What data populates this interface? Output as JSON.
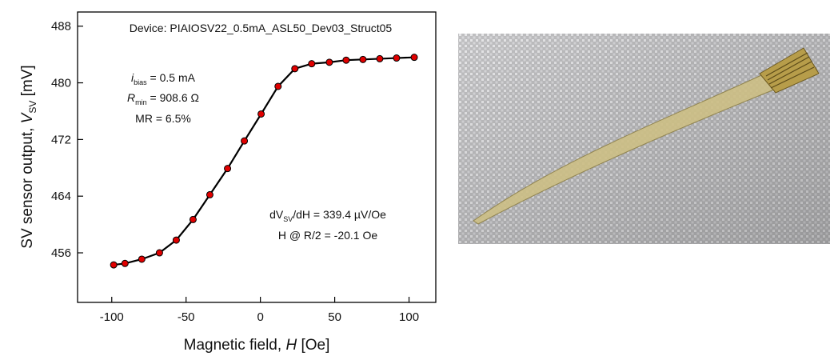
{
  "chart_data": {
    "type": "line",
    "x_label": [
      "Magnetic field, ",
      "H",
      " [Oe]"
    ],
    "y_label": [
      "SV sensor output,  ",
      "V",
      "SV",
      " [mV]"
    ],
    "annotations": {
      "device": "Device: PIAIOSV22_0.5mA_ASL50_Dev03_Struct05",
      "bias": [
        "i",
        "bias",
        " = 0.5 mA"
      ],
      "rmin": [
        "R",
        "min",
        " = 908.6 Ω"
      ],
      "mr": "MR = 6.5%",
      "slope": [
        "dV",
        "SV",
        "/dH = 339.4 µV/Oe"
      ],
      "half": "H @ R/2 = -20.1 Oe"
    },
    "x": [
      -98.7,
      -91.1,
      -79.8,
      -67.9,
      -56.6,
      -45.3,
      -34.0,
      -22.1,
      -10.8,
      0.5,
      11.9,
      23.2,
      34.5,
      46.4,
      57.7,
      69.0,
      80.3,
      91.6,
      103.5
    ],
    "series": [
      {
        "color": "#e00000",
        "values": [
          454.3,
          454.5,
          455.1,
          456.0,
          457.8,
          460.7,
          464.2,
          467.9,
          471.8,
          475.6,
          479.5,
          482.0,
          482.7,
          482.9,
          483.2,
          483.3,
          483.4,
          483.5,
          483.6
        ]
      }
    ],
    "xlim": [
      -123,
      118
    ],
    "xticks": [
      -100,
      -50,
      0,
      50,
      100
    ],
    "ylim": [
      449,
      490
    ],
    "yticks": [
      456,
      464,
      472,
      480,
      488
    ]
  }
}
